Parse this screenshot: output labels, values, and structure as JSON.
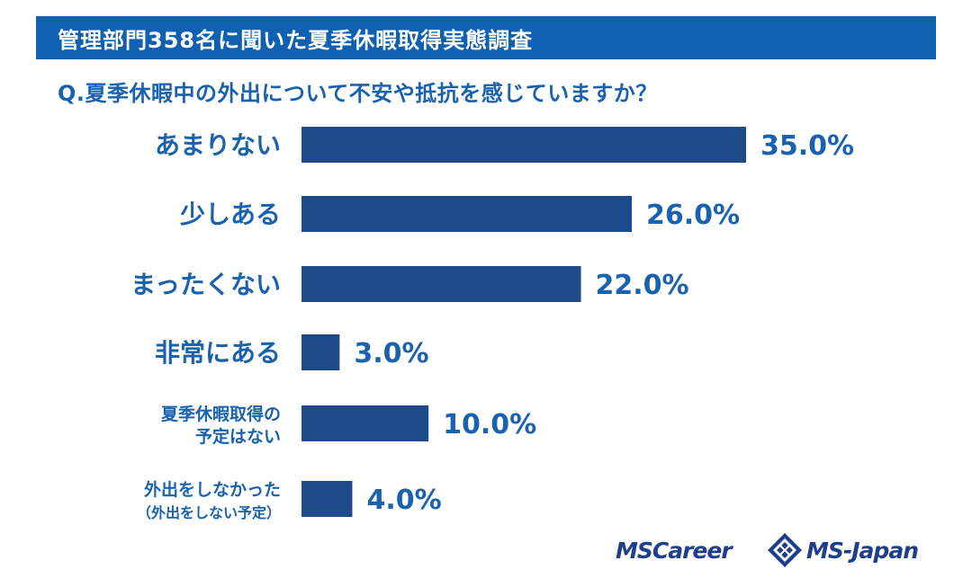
{
  "header": {
    "title": "管理部門358名に聞いた夏季休暇取得実態調査",
    "question": "Q.夏季休暇中の外出について不安や抵抗を感じていますか？"
  },
  "colors": {
    "title_bg": "#1060b0",
    "bar": "#1f4a8a",
    "text": "#1a62ad"
  },
  "chart_data": {
    "type": "bar",
    "orientation": "horizontal",
    "categories": [
      [
        "あまりない"
      ],
      [
        "少しある"
      ],
      [
        "まったくない"
      ],
      [
        "非常にある"
      ],
      [
        "夏季休暇取得の",
        "予定はない"
      ],
      [
        "外出をしなかった",
        "（外出をしない予定）"
      ]
    ],
    "values": [
      35.0,
      26.0,
      22.0,
      3.0,
      10.0,
      4.0
    ],
    "value_labels": [
      "35.0%",
      "26.0%",
      "22.0%",
      "3.0%",
      "10.0%",
      "4.0%"
    ],
    "xlim": [
      0,
      100
    ],
    "unit": "%",
    "grid": false,
    "legend": "none"
  },
  "logos": {
    "mscareer": "MSCareer",
    "msjapan": "MS-Japan"
  }
}
